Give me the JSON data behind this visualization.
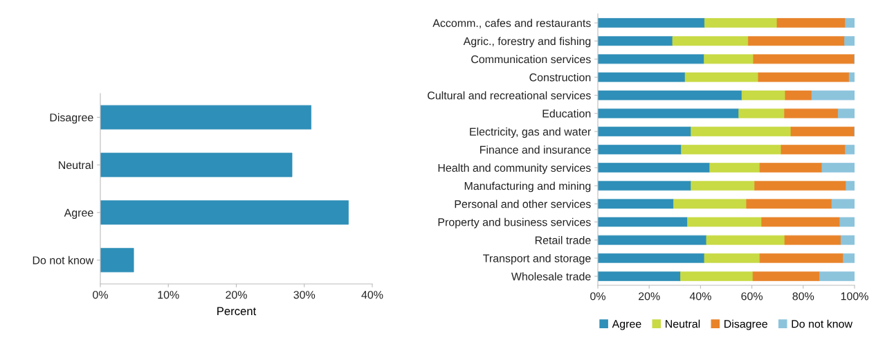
{
  "chart_data": [
    {
      "type": "bar",
      "orientation": "horizontal",
      "categories": [
        "Disagree",
        "Neutral",
        "Agree",
        "Do not know"
      ],
      "values": [
        31.0,
        28.2,
        36.5,
        4.9
      ],
      "color": "#2e8fb8",
      "xlabel": "Percent",
      "xlim": [
        0,
        40
      ],
      "xticks": [
        {
          "value": 0,
          "label": "0%"
        },
        {
          "value": 10,
          "label": "10%"
        },
        {
          "value": 20,
          "label": "20%"
        },
        {
          "value": 30,
          "label": "30%"
        },
        {
          "value": 40,
          "label": "40%"
        }
      ],
      "grid": false,
      "legend": false
    },
    {
      "type": "bar",
      "orientation": "horizontal",
      "stacked": true,
      "categories": [
        "Accomm., cafes and restaurants",
        "Agric., forestry and fishing",
        "Communication services",
        "Construction",
        "Cultural and recreational services",
        "Education",
        "Electricity, gas and water",
        "Finance and insurance",
        "Health and community services",
        "Manufacturing and mining",
        "Personal and other services",
        "Property and business services",
        "Retail trade",
        "Transport and storage",
        "Wholesale trade"
      ],
      "series": [
        {
          "name": "Agree",
          "color": "#2e8fb8",
          "values": [
            41.6,
            29.1,
            41.4,
            34.0,
            56.1,
            54.9,
            36.3,
            32.5,
            43.6,
            36.3,
            29.5,
            34.9,
            42.3,
            41.5,
            32.2
          ]
        },
        {
          "name": "Neutral",
          "color": "#c8da44",
          "values": [
            28.2,
            29.5,
            19.2,
            28.5,
            16.9,
            17.8,
            38.9,
            38.9,
            19.5,
            24.8,
            28.4,
            28.9,
            30.5,
            21.6,
            28.2
          ]
        },
        {
          "name": "Disagree",
          "color": "#e8832a",
          "values": [
            26.6,
            37.5,
            39.4,
            35.4,
            10.3,
            20.9,
            24.8,
            25.0,
            24.2,
            35.6,
            33.2,
            30.5,
            21.9,
            32.5,
            26.0
          ]
        },
        {
          "name": "Do not know",
          "color": "#8cc4dc",
          "values": [
            3.6,
            3.9,
            0,
            2.1,
            16.7,
            6.4,
            0,
            3.6,
            12.7,
            3.3,
            8.9,
            5.7,
            5.3,
            4.4,
            13.6
          ]
        }
      ],
      "xlim": [
        0,
        100
      ],
      "xticks": [
        {
          "value": 0,
          "label": "0%"
        },
        {
          "value": 20,
          "label": "20%"
        },
        {
          "value": 40,
          "label": "40%"
        },
        {
          "value": 60,
          "label": "60%"
        },
        {
          "value": 80,
          "label": "80%"
        },
        {
          "value": 100,
          "label": "100%"
        }
      ],
      "grid": false,
      "legend": "bottom"
    }
  ]
}
